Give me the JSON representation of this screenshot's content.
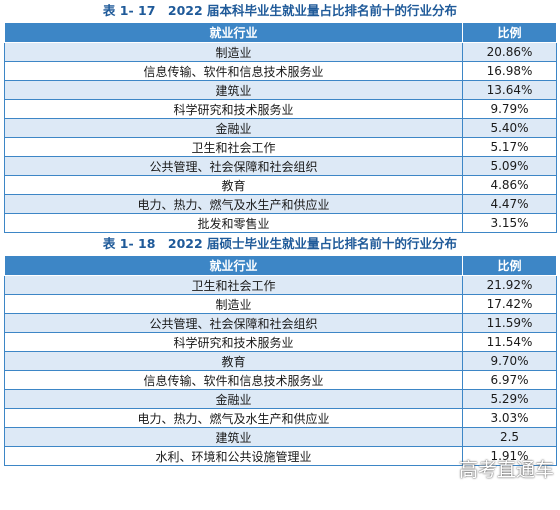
{
  "table1": {
    "caption": "表 1- 17　2022 届本科毕业生就业量占比排名前十的行业分布",
    "header": [
      "就业行业",
      "比例"
    ],
    "rows": [
      [
        "制造业",
        "20.86%"
      ],
      [
        "信息传输、软件和信息技术服务业",
        "16.98%"
      ],
      [
        "建筑业",
        "13.64%"
      ],
      [
        "科学研究和技术服务业",
        "9.79%"
      ],
      [
        "金融业",
        "5.40%"
      ],
      [
        "卫生和社会工作",
        "5.17%"
      ],
      [
        "公共管理、社会保障和社会组织",
        "5.09%"
      ],
      [
        "教育",
        "4.86%"
      ],
      [
        "电力、热力、燃气及水生产和供应业",
        "4.47%"
      ],
      [
        "批发和零售业",
        "3.15%"
      ]
    ]
  },
  "table2": {
    "caption": "表 1- 18　2022 届硕士毕业生就业量占比排名前十的行业分布",
    "header": [
      "就业行业",
      "比例"
    ],
    "rows": [
      [
        "卫生和社会工作",
        "21.92%"
      ],
      [
        "制造业",
        "17.42%"
      ],
      [
        "公共管理、社会保障和社会组织",
        "11.59%"
      ],
      [
        "科学研究和技术服务业",
        "11.54%"
      ],
      [
        "教育",
        "9.70%"
      ],
      [
        "信息传输、软件和信息技术服务业",
        "6.97%"
      ],
      [
        "金融业",
        "5.29%"
      ],
      [
        "电力、热力、燃气及水生产和供应业",
        "3.03%"
      ],
      [
        "建筑业",
        "2.5"
      ],
      [
        "水利、环境和公共设施管理业",
        "1.91%"
      ]
    ]
  },
  "watermark": "高考直通车"
}
